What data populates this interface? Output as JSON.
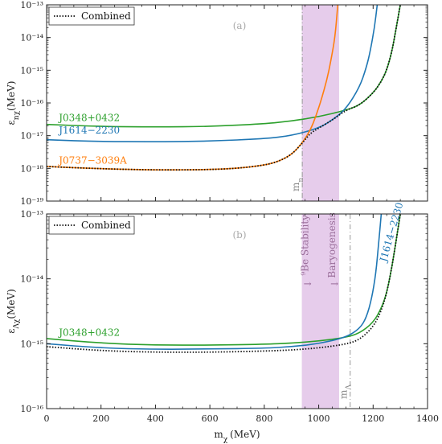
{
  "chart_data": [
    {
      "type": "line",
      "panel_label": "(a)",
      "xlabel": "",
      "ylabel": "ε_{nχ}(MeV)",
      "xlim": [
        0,
        1400
      ],
      "ylim": [
        1e-19,
        1e-13
      ],
      "yscale": "log",
      "x_ticks": [
        0,
        200,
        400,
        600,
        800,
        1000,
        1200,
        1400
      ],
      "y_ticks": [
        {
          "value": 1e-19,
          "label": "10⁻¹⁹"
        },
        {
          "value": 1e-18,
          "label": "10⁻¹⁸"
        },
        {
          "value": 1e-17,
          "label": "10⁻¹⁷"
        },
        {
          "value": 1e-16,
          "label": "10⁻¹⁶"
        },
        {
          "value": 1e-15,
          "label": "10⁻¹⁵"
        },
        {
          "value": 1e-14,
          "label": "10⁻¹⁴"
        },
        {
          "value": 1e-13,
          "label": "10⁻¹³"
        }
      ],
      "legend": {
        "label": "Combined",
        "placement": "top-left"
      },
      "shaded_band": {
        "x0": 938,
        "x1": 1075,
        "color": "#e2c3e8"
      },
      "vline": {
        "x": 939.6,
        "label": "m_n"
      },
      "series": [
        {
          "name": "J0348+0432",
          "color": "#2ca02c",
          "label_at": [
            45,
            2.8e-17
          ],
          "x": [
            0,
            200,
            400,
            600,
            800,
            900,
            1000,
            1100,
            1150,
            1200,
            1230,
            1250,
            1270,
            1285,
            1300
          ],
          "y": [
            2.2e-17,
            1.9e-17,
            1.85e-17,
            1.9e-17,
            2.3e-17,
            2.8e-17,
            3.8e-17,
            6e-17,
            8.5e-17,
            2e-16,
            4.5e-16,
            1e-15,
            4e-15,
            2e-14,
            1e-13
          ]
        },
        {
          "name": "J1614−2230",
          "color": "#1f77b4",
          "label_at": [
            45,
            1.15e-17
          ],
          "x": [
            0,
            200,
            400,
            600,
            800,
            900,
            1000,
            1050,
            1100,
            1150,
            1175,
            1190,
            1205,
            1215
          ],
          "y": [
            7.5e-18,
            6.6e-18,
            6.5e-18,
            6.8e-18,
            8e-18,
            1e-17,
            1.7e-17,
            3e-17,
            6.5e-17,
            3e-16,
            1.2e-15,
            4e-15,
            2e-14,
            1e-13
          ]
        },
        {
          "name": "J0737−3039A",
          "color": "#ff7f0e",
          "label_at": [
            45,
            1.4e-18
          ],
          "x": [
            0,
            100,
            200,
            300,
            400,
            500,
            600,
            700,
            800,
            850,
            900,
            940,
            970,
            990,
            1010,
            1030,
            1045,
            1060,
            1070
          ],
          "y": [
            1.15e-18,
            1.05e-18,
            9.8e-19,
            9.3e-19,
            9e-19,
            9e-19,
            9.2e-19,
            1e-18,
            1.25e-18,
            1.6e-18,
            2.6e-18,
            6e-18,
            1.5e-17,
            4e-17,
            1.3e-16,
            5e-16,
            2e-15,
            1e-14,
            1e-13
          ]
        },
        {
          "name": "Combined",
          "color": "#111111",
          "dashed": true,
          "x": [
            0,
            100,
            200,
            300,
            400,
            500,
            600,
            700,
            800,
            850,
            900,
            940,
            970,
            1000,
            1050,
            1100,
            1150,
            1200,
            1230,
            1250,
            1270,
            1285,
            1300
          ],
          "y": [
            1.15e-18,
            1.05e-18,
            9.8e-19,
            9.3e-19,
            9e-19,
            9e-19,
            9.2e-19,
            1e-18,
            1.25e-18,
            1.6e-18,
            2.6e-18,
            6e-18,
            1.2e-17,
            1.7e-17,
            3e-17,
            6e-17,
            8.5e-17,
            2e-16,
            4.5e-16,
            1e-15,
            4e-15,
            2e-14,
            1e-13
          ]
        }
      ]
    },
    {
      "type": "line",
      "panel_label": "(b)",
      "xlabel": "m_χ (MeV)",
      "ylabel": "ε_{Λχ}(MeV)",
      "xlim": [
        0,
        1400
      ],
      "ylim": [
        1e-16,
        1e-13
      ],
      "yscale": "log",
      "x_ticks": [
        0,
        200,
        400,
        600,
        800,
        1000,
        1200,
        1400
      ],
      "y_ticks": [
        {
          "value": 1e-16,
          "label": "10⁻¹⁶"
        },
        {
          "value": 1e-15,
          "label": "10⁻¹⁵"
        },
        {
          "value": 1e-14,
          "label": "10⁻¹⁴"
        },
        {
          "value": 1e-13,
          "label": "10⁻¹³"
        }
      ],
      "legend": {
        "label": "Combined",
        "placement": "top-left"
      },
      "shaded_band": {
        "x0": 938,
        "x1": 1075,
        "color": "#e2c3e8"
      },
      "vline": {
        "x": 1115.7,
        "label": "m_Λ"
      },
      "annotations": [
        {
          "text": "⁹Be Stability",
          "arrow": "→",
          "x": 962,
          "y": 3.3e-14,
          "color": "#9b6f9b"
        },
        {
          "text": "Baryogenesis",
          "arrow": "←",
          "x": 1060,
          "y": 3.3e-14,
          "color": "#9b6f9b"
        }
      ],
      "series": [
        {
          "name": "J0348+0432",
          "color": "#2ca02c",
          "label_at": [
            45,
            1.33e-15
          ],
          "x": [
            0,
            200,
            400,
            600,
            800,
            900,
            1000,
            1100,
            1150,
            1200,
            1230,
            1250,
            1270,
            1285,
            1300
          ],
          "y": [
            1.2e-15,
            1.02e-15,
            9.5e-16,
            9.5e-16,
            9.8e-16,
            1.02e-15,
            1.1e-15,
            1.25e-15,
            1.45e-15,
            2.1e-15,
            3.5e-15,
            6e-15,
            1.6e-14,
            4e-14,
            1e-13
          ]
        },
        {
          "name": "J1614−2230",
          "color": "#1f77b4",
          "label_rotated": true,
          "label_at": [
            1248,
            1.8e-14
          ],
          "x": [
            0,
            200,
            400,
            600,
            800,
            900,
            1000,
            1100,
            1150,
            1175,
            1195,
            1210,
            1220,
            1230
          ],
          "y": [
            1e-15,
            8.6e-16,
            8.2e-16,
            8.3e-16,
            8.5e-16,
            9e-16,
            1e-15,
            1.25e-15,
            1.7e-15,
            2.5e-15,
            5e-15,
            1.2e-14,
            3.5e-14,
            1e-13
          ]
        },
        {
          "name": "Combined",
          "color": "#111111",
          "dashed": true,
          "x": [
            0,
            200,
            400,
            600,
            800,
            900,
            1000,
            1100,
            1150,
            1200,
            1230,
            1250,
            1270,
            1285,
            1300
          ],
          "y": [
            9e-16,
            7.8e-16,
            7.4e-16,
            7.4e-16,
            7.7e-16,
            8e-16,
            8.6e-16,
            9.8e-16,
            1.15e-15,
            1.8e-15,
            3.2e-15,
            6e-15,
            1.6e-14,
            4e-14,
            1e-13
          ]
        }
      ]
    }
  ]
}
